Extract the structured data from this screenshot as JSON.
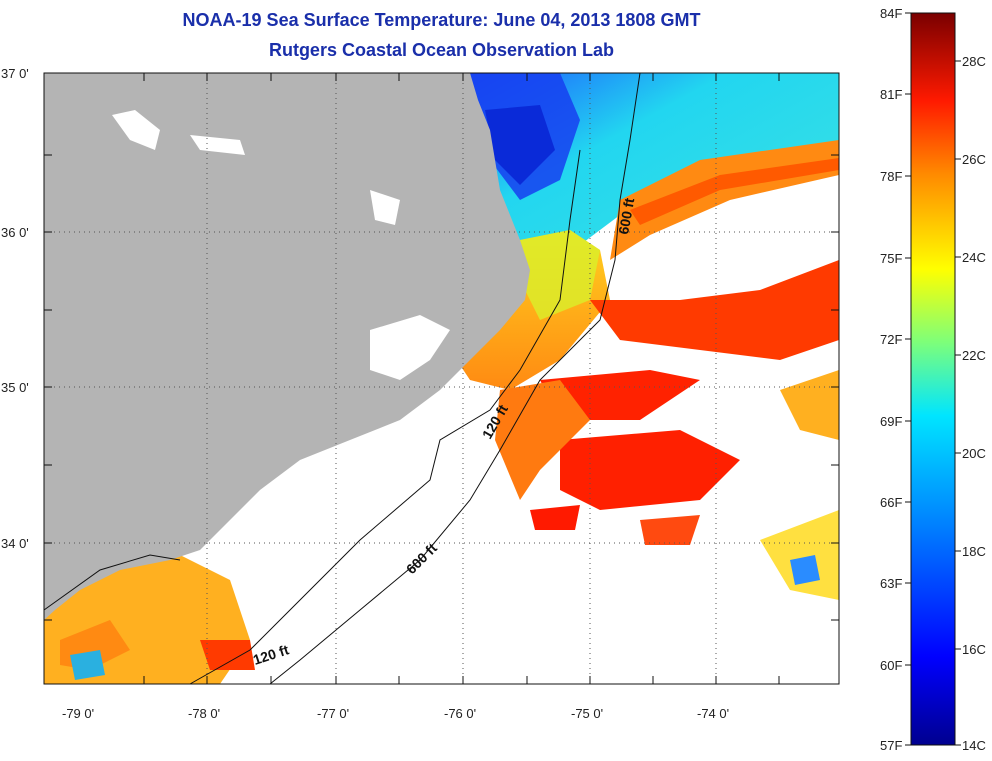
{
  "title": "NOAA-19 Sea Surface Temperature:  June 04, 2013 1808 GMT",
  "subtitle": "Rutgers Coastal Ocean Observation Lab",
  "map": {
    "lat_ticks": [
      "37 0'",
      "36 0'",
      "35 0'",
      "34 0'"
    ],
    "lon_ticks": [
      "-79 0'",
      "-78 0'",
      "-77 0'",
      "-76 0'",
      "-75 0'",
      "-74 0'"
    ],
    "lat_range": [
      33.1,
      37.0
    ],
    "lon_range": [
      -79.3,
      -73.0
    ],
    "contours": [
      "600 ft",
      "120 ft",
      "600 ft",
      "120 ft"
    ],
    "land_color": "#b4b4b4",
    "grid": "dotted"
  },
  "colorbar": {
    "fahrenheit": [
      "84F",
      "81F",
      "78F",
      "75F",
      "72F",
      "69F",
      "66F",
      "63F",
      "60F",
      "57F"
    ],
    "celsius": [
      "28C",
      "26C",
      "24C",
      "22C",
      "20C",
      "18C",
      "16C",
      "14C"
    ]
  },
  "colors": {
    "title": "#1a2faa",
    "cold": "#0a14a0",
    "warm": "#ff3a00",
    "hot": "#7a0000"
  }
}
